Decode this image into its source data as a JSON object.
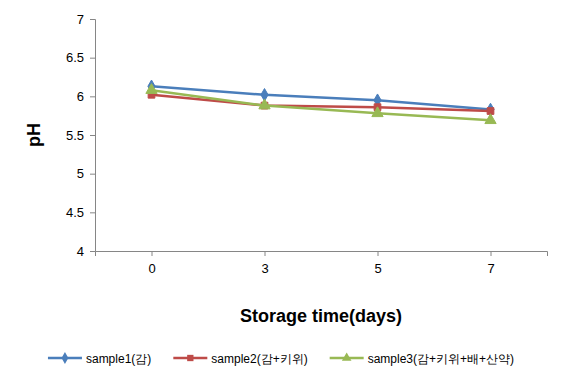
{
  "chart_data": {
    "type": "line",
    "x_label": "Storage time(days)",
    "y_label": "pH",
    "categories": [
      "0",
      "3",
      "5",
      "7"
    ],
    "series": [
      {
        "name": "sample1(감)",
        "color": "#4a7ebb",
        "marker": "diamond",
        "values": [
          6.13,
          6.02,
          5.95,
          5.83
        ]
      },
      {
        "name": "sample2(감+키위)",
        "color": "#be4b48",
        "marker": "square",
        "values": [
          6.02,
          5.88,
          5.86,
          5.81
        ]
      },
      {
        "name": "sample3(감+키위+배+산약)",
        "color": "#98b954",
        "marker": "triangle",
        "values": [
          6.08,
          5.88,
          5.78,
          5.69
        ]
      }
    ],
    "ylim": [
      4,
      7
    ],
    "yticks": [
      4,
      4.5,
      5,
      5.5,
      6,
      6.5,
      7
    ],
    "grid": false,
    "legend": "bottom"
  }
}
